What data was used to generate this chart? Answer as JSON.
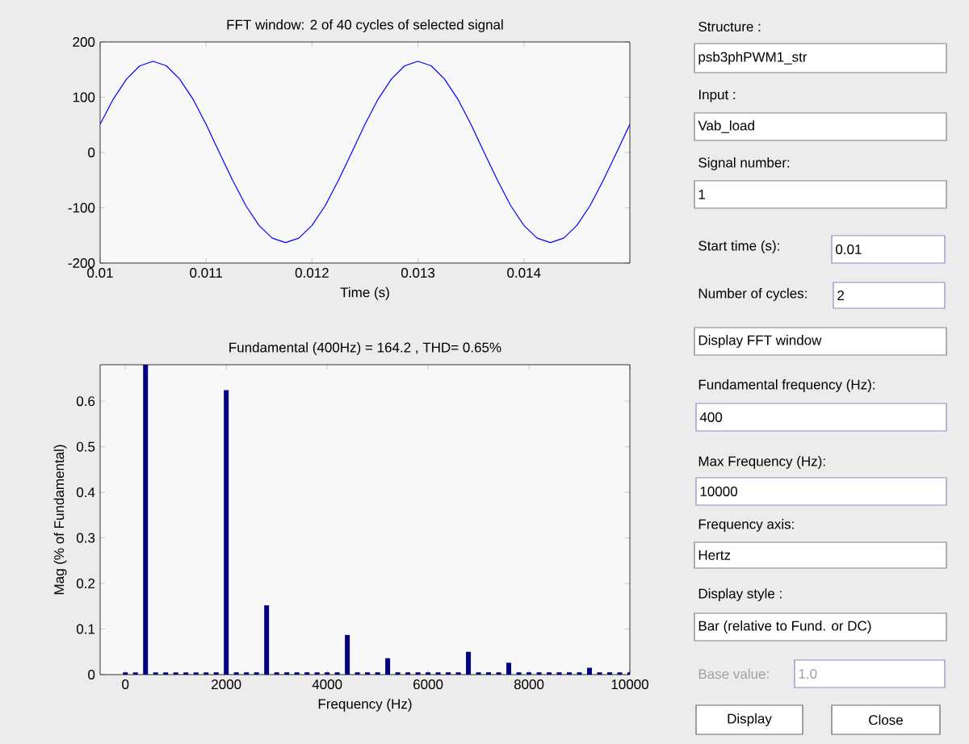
{
  "chart_data": [
    {
      "type": "line",
      "title": "FFT window: 2 of 40 cycles of selected signal",
      "xlabel": "Time (s)",
      "color": "#0000ff",
      "x": [
        0.01,
        0.010125,
        0.01025,
        0.010375,
        0.0105,
        0.010625,
        0.01075,
        0.010875,
        0.011,
        0.011125,
        0.01125,
        0.011375,
        0.0115,
        0.011625,
        0.01175,
        0.011875,
        0.012,
        0.012125,
        0.01225,
        0.012375,
        0.0125,
        0.012625,
        0.01275,
        0.012875,
        0.013,
        0.013125,
        0.01325,
        0.013375,
        0.0135,
        0.013625,
        0.01375,
        0.013875,
        0.014,
        0.014125,
        0.01425,
        0.014375,
        0.0145,
        0.014625,
        0.01475,
        0.014875,
        0.015
      ],
      "values": [
        51,
        97,
        133,
        157,
        165,
        157,
        133,
        97,
        51,
        0,
        -50,
        -96,
        -132,
        -155,
        -163,
        -155,
        -132,
        -96,
        -50,
        0,
        51,
        97,
        133,
        157,
        165,
        157,
        133,
        97,
        51,
        0,
        -50,
        -96,
        -132,
        -155,
        -163,
        -155,
        -132,
        -96,
        -50,
        0,
        51
      ],
      "xlim": [
        0.01,
        0.015
      ],
      "ylim": [
        -200,
        200
      ],
      "xticks": [
        0.01,
        0.011,
        0.012,
        0.013,
        0.014
      ],
      "yticks": [
        -200,
        -100,
        0,
        100,
        200
      ]
    },
    {
      "type": "bar",
      "title": "Fundamental (400Hz) = 164.2 , THD= 0.65%",
      "xlabel": "Frequency (Hz)",
      "ylabel": "Mag (% of Fundamental)",
      "color": "#000080",
      "x": [
        0,
        200,
        400,
        600,
        800,
        1000,
        1200,
        1400,
        1600,
        1800,
        2000,
        2200,
        2400,
        2600,
        2800,
        3000,
        3200,
        3400,
        3600,
        3800,
        4000,
        4200,
        4400,
        4600,
        4800,
        5000,
        5200,
        5400,
        5600,
        5800,
        6000,
        6200,
        6400,
        6600,
        6800,
        7000,
        7200,
        7400,
        7600,
        7800,
        8000,
        8200,
        8400,
        8600,
        8800,
        9000,
        9200,
        9400,
        9600,
        9800,
        10000
      ],
      "values": [
        0.005,
        0.005,
        0.68,
        0.005,
        0.005,
        0.005,
        0.005,
        0.005,
        0.005,
        0.005,
        0.624,
        0.005,
        0.005,
        0.005,
        0.152,
        0.005,
        0.005,
        0.005,
        0.005,
        0.005,
        0.005,
        0.005,
        0.087,
        0.005,
        0.005,
        0.005,
        0.036,
        0.005,
        0.005,
        0.005,
        0.005,
        0.005,
        0.005,
        0.005,
        0.05,
        0.005,
        0.005,
        0.005,
        0.026,
        0.005,
        0.005,
        0.005,
        0.005,
        0.005,
        0.005,
        0.005,
        0.015,
        0.005,
        0.005,
        0.005,
        0.005
      ],
      "xlim": [
        -500,
        10000
      ],
      "ylim": [
        0,
        0.68
      ],
      "xticks": [
        0,
        2000,
        4000,
        6000,
        8000,
        10000
      ],
      "yticks": [
        0,
        0.1,
        0.2,
        0.3,
        0.4,
        0.5,
        0.6
      ]
    },
    {
      "type": "other",
      "annotations": [
        "Structure :",
        "psb3phPWM1_str",
        "Input :",
        "Vab_load",
        "Signal number:",
        "1",
        "Start time (s):",
        "0.01",
        "Number of cycles:",
        "2",
        "Display FFT window",
        "Fundamental frequency (Hz):",
        "400",
        "Max Frequency (Hz):",
        "10000",
        "Frequency axis:",
        "Hertz",
        "Display style :",
        "Bar (relative to Fund. or DC)",
        "Base value:",
        "1.0",
        "Display",
        "Close"
      ]
    }
  ]
}
